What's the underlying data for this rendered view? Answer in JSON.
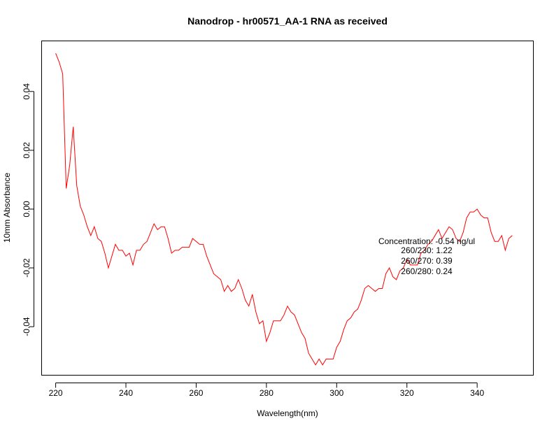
{
  "chart_data": {
    "type": "line",
    "title": "Nanodrop - hr00571_AA-1 RNA as received",
    "xlabel": "Wavelength(nm)",
    "ylabel": "10mm Absorbance",
    "xlim": [
      216,
      356
    ],
    "ylim": [
      -0.0565,
      0.0572
    ],
    "xticks": [
      220,
      240,
      260,
      280,
      300,
      320,
      340
    ],
    "xtick_labels": [
      "220",
      "240",
      "260",
      "280",
      "300",
      "320",
      "340"
    ],
    "yticks": [
      -0.04,
      -0.02,
      0.0,
      0.02,
      0.04
    ],
    "ytick_labels": [
      "-0.04",
      "-0.02",
      "0.00",
      "0.02",
      "0.04"
    ],
    "grid": false,
    "series": [
      {
        "color": "#ff0000",
        "x": [
          220,
          221,
          222,
          223,
          224,
          225,
          226,
          227,
          228,
          229,
          230,
          231,
          232,
          233,
          234,
          235,
          236,
          237,
          238,
          239,
          240,
          241,
          242,
          243,
          244,
          245,
          246,
          247,
          248,
          249,
          250,
          251,
          252,
          253,
          254,
          255,
          256,
          257,
          258,
          259,
          260,
          261,
          262,
          263,
          264,
          265,
          266,
          267,
          268,
          269,
          270,
          271,
          272,
          273,
          274,
          275,
          276,
          277,
          278,
          279,
          280,
          281,
          282,
          283,
          284,
          285,
          286,
          287,
          288,
          289,
          290,
          291,
          292,
          293,
          294,
          295,
          296,
          297,
          298,
          299,
          300,
          301,
          302,
          303,
          304,
          305,
          306,
          307,
          308,
          309,
          310,
          311,
          312,
          313,
          314,
          315,
          316,
          317,
          318,
          319,
          320,
          321,
          322,
          323,
          324,
          325,
          326,
          327,
          328,
          329,
          330,
          331,
          332,
          333,
          334,
          335,
          336,
          337,
          338,
          339,
          340,
          341,
          342,
          343,
          344,
          345,
          346,
          347,
          348,
          349,
          350
        ],
        "y": [
          0.053,
          0.05,
          0.046,
          0.007,
          0.015,
          0.028,
          0.008,
          0.001,
          -0.002,
          -0.006,
          -0.009,
          -0.006,
          -0.01,
          -0.011,
          -0.015,
          -0.02,
          -0.016,
          -0.012,
          -0.014,
          -0.014,
          -0.016,
          -0.015,
          -0.019,
          -0.014,
          -0.014,
          -0.012,
          -0.011,
          -0.008,
          -0.005,
          -0.007,
          -0.006,
          -0.006,
          -0.01,
          -0.015,
          -0.014,
          -0.014,
          -0.013,
          -0.013,
          -0.013,
          -0.01,
          -0.011,
          -0.012,
          -0.012,
          -0.016,
          -0.019,
          -0.022,
          -0.023,
          -0.024,
          -0.028,
          -0.026,
          -0.028,
          -0.027,
          -0.024,
          -0.027,
          -0.031,
          -0.033,
          -0.029,
          -0.035,
          -0.039,
          -0.038,
          -0.045,
          -0.042,
          -0.038,
          -0.038,
          -0.038,
          -0.036,
          -0.033,
          -0.035,
          -0.036,
          -0.039,
          -0.042,
          -0.044,
          -0.049,
          -0.051,
          -0.053,
          -0.051,
          -0.053,
          -0.051,
          -0.051,
          -0.051,
          -0.047,
          -0.045,
          -0.041,
          -0.038,
          -0.037,
          -0.035,
          -0.034,
          -0.031,
          -0.027,
          -0.026,
          -0.027,
          -0.028,
          -0.027,
          -0.027,
          -0.022,
          -0.02,
          -0.023,
          -0.024,
          -0.021,
          -0.02,
          -0.017,
          -0.019,
          -0.019,
          -0.019,
          -0.015,
          -0.014,
          -0.012,
          -0.011,
          -0.009,
          -0.007,
          -0.01,
          -0.008,
          -0.006,
          -0.007,
          -0.01,
          -0.011,
          -0.008,
          -0.003,
          -0.001,
          -0.001,
          0.0,
          -0.002,
          -0.003,
          -0.003,
          -0.008,
          -0.011,
          -0.011,
          -0.009,
          -0.014,
          -0.01,
          -0.009
        ]
      }
    ],
    "annotations": [
      "Concentration: -0.54 ng/ul",
      "260/230: 1.22",
      "260/270: 0.39",
      "260/280: 0.24"
    ]
  }
}
